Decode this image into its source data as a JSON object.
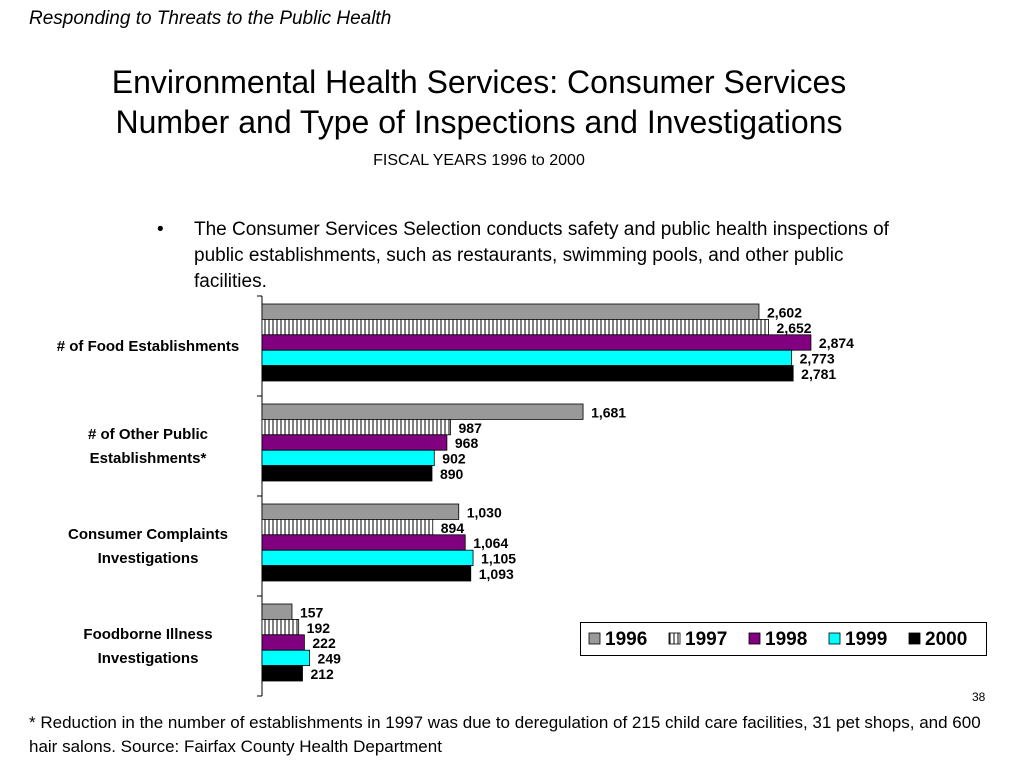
{
  "header": {
    "section": "Responding to Threats to the Public Health"
  },
  "title": {
    "line1": "Environmental Health Services: Consumer Services",
    "line2": "Number and Type of Inspections and Investigations",
    "subtitle": "FISCAL YEARS 1996 to 2000"
  },
  "bullet": {
    "symbol": "•",
    "text": "The Consumer Services Selection conducts safety and public health inspections of public establishments, such as restaurants, swimming pools, and other public facilities."
  },
  "page_number": "38",
  "footnote": "* Reduction in the number of establishments in 1997 was due to deregulation of 215 child care facilities, 31 pet shops, and 600 hair salons.  Source:  Fairfax County Health Department",
  "colors": {
    "1996": "#999999",
    "1997": "hatch-vertical",
    "1998": "#800080",
    "1999": "#00ffff",
    "2000": "#000000"
  },
  "chart_data": {
    "type": "bar",
    "orientation": "horizontal",
    "categories": [
      [
        "# of Food Establishments"
      ],
      [
        "# of Other Public",
        "Establishments*"
      ],
      [
        "Consumer Complaints",
        "Investigations"
      ],
      [
        "Foodborne Illness",
        "Investigations"
      ]
    ],
    "series": [
      {
        "name": "1996",
        "values": [
          2602,
          1681,
          1030,
          157
        ],
        "labels": [
          "2,602",
          "1,681",
          "1,030",
          "157"
        ]
      },
      {
        "name": "1997",
        "values": [
          2652,
          987,
          894,
          192
        ],
        "labels": [
          "2,652",
          "987",
          "894",
          "192"
        ]
      },
      {
        "name": "1998",
        "values": [
          2874,
          968,
          1064,
          222
        ],
        "labels": [
          "2,874",
          "968",
          "1,064",
          "222"
        ]
      },
      {
        "name": "1999",
        "values": [
          2773,
          902,
          1105,
          249
        ],
        "labels": [
          "2,773",
          "902",
          "1,105",
          "249"
        ]
      },
      {
        "name": "2000",
        "values": [
          2781,
          890,
          1093,
          212
        ],
        "labels": [
          "2,781",
          "890",
          "1,093",
          "212"
        ]
      }
    ],
    "xlim": [
      0,
      3000
    ],
    "grid": false,
    "legend": "bottom-right"
  }
}
